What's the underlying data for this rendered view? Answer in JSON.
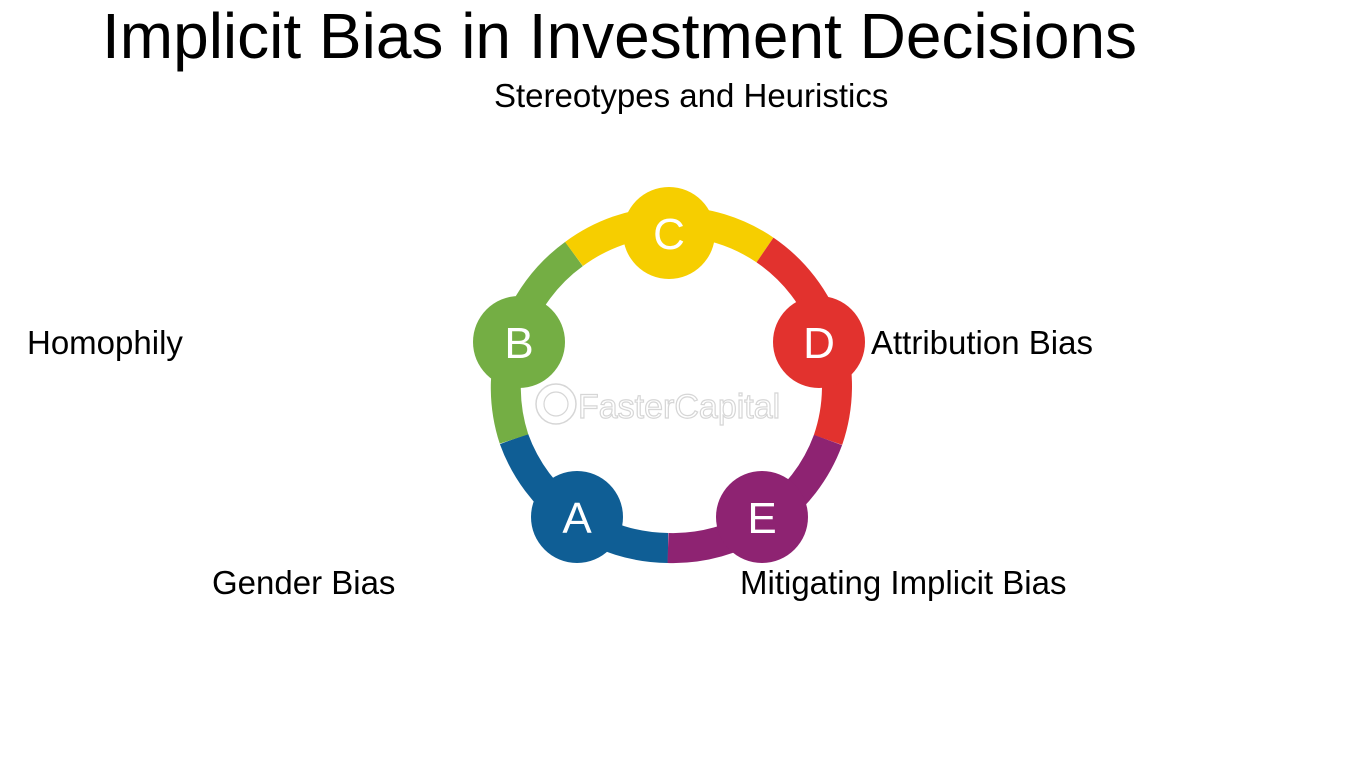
{
  "title": "Implicit Bias in Investment Decisions",
  "watermark": "FasterCapital",
  "nodes": [
    {
      "letter": "A",
      "label": "Gender Bias",
      "color": "#0f5e95"
    },
    {
      "letter": "B",
      "label": "Homophily",
      "color": "#74ae44"
    },
    {
      "letter": "C",
      "label": "Stereotypes and Heuristics",
      "color": "#f6ce00"
    },
    {
      "letter": "D",
      "label": "Attribution Bias",
      "color": "#e2322e"
    },
    {
      "letter": "E",
      "label": "Mitigating Implicit Bias",
      "color": "#8e2372"
    }
  ]
}
